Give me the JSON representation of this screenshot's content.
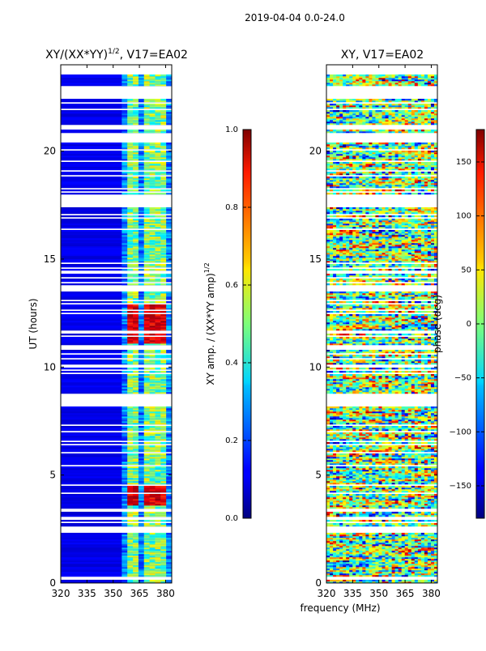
{
  "figure": {
    "suptitle": "2019-04-04 0.0-24.0",
    "xlabel": "frequency (MHz)"
  },
  "chart_data": [
    {
      "type": "heatmap",
      "title_main": "XY/(XX*YY)",
      "title_sup": "1/2",
      "title_suffix": ", V17=EA02",
      "ylabel": "UT (hours)",
      "x_ticks": [
        "320",
        "335",
        "350",
        "365",
        "380"
      ],
      "x_tick_values": [
        320,
        335,
        350,
        365,
        380
      ],
      "xlim": [
        320,
        383.5
      ],
      "y_ticks": [
        "0",
        "5",
        "10",
        "15",
        "20"
      ],
      "y_tick_values": [
        0,
        5,
        10,
        15,
        20
      ],
      "ylim": [
        0,
        24
      ],
      "colorbar": {
        "label_main": "XY amp. / (XX*YY amp)",
        "label_sup": "1/2",
        "ticks": [
          "0.0",
          "0.2",
          "0.4",
          "0.6",
          "0.8",
          "1.0"
        ],
        "tick_values": [
          0.0,
          0.2,
          0.4,
          0.6,
          0.8,
          1.0
        ],
        "range": [
          0.0,
          1.0
        ]
      }
    },
    {
      "type": "heatmap",
      "title_main": "XY, V17=EA02",
      "ylabel": "",
      "x_ticks": [
        "320",
        "335",
        "350",
        "365",
        "380"
      ],
      "x_tick_values": [
        320,
        335,
        350,
        365,
        380
      ],
      "xlim": [
        320,
        383.5
      ],
      "y_ticks": [
        "0",
        "5",
        "10",
        "15",
        "20"
      ],
      "y_tick_values": [
        0,
        5,
        10,
        15,
        20
      ],
      "ylim": [
        0,
        24
      ],
      "colorbar": {
        "label_main": "phase (deg)",
        "ticks": [
          "−150",
          "−100",
          "−50",
          "0",
          "50",
          "100",
          "150"
        ],
        "tick_values": [
          -150,
          -100,
          -50,
          0,
          50,
          100,
          150
        ],
        "range": [
          -180,
          180
        ]
      }
    }
  ]
}
